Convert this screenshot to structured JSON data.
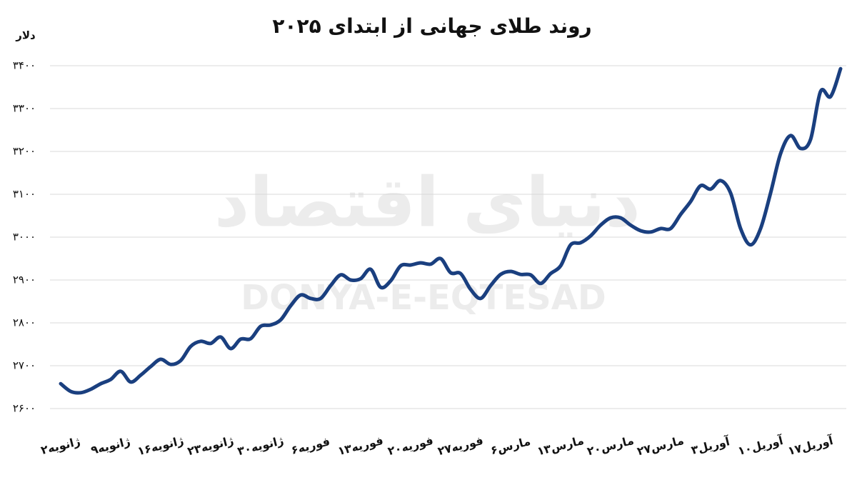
{
  "chart_data": {
    "type": "line",
    "title": "روند طلای جهانی از ابتدای ۲۰۲۵",
    "y_label": "دلار",
    "watermark": [
      "دنیای اقتصاد",
      "DONYA-E-EQTESAD"
    ],
    "categories": [
      "۲ژانویه",
      null,
      null,
      null,
      null,
      "۹ژانویه",
      null,
      null,
      null,
      null,
      "۱۶ژانویه",
      null,
      null,
      null,
      null,
      "۲۳ژانویه",
      null,
      null,
      null,
      null,
      "۳۰ژانویه",
      null,
      null,
      null,
      null,
      "۶فوریه",
      null,
      null,
      null,
      null,
      "۱۳فوریه",
      null,
      null,
      null,
      null,
      "۲۰فوریه",
      null,
      null,
      null,
      null,
      "۲۷فوریه",
      null,
      null,
      null,
      null,
      "۶مارس",
      null,
      null,
      null,
      null,
      "۱۳مارس",
      null,
      null,
      null,
      null,
      "۲۰مارس",
      null,
      null,
      null,
      null,
      "۲۷مارس",
      null,
      null,
      null,
      null,
      "۳آوریل",
      null,
      null,
      null,
      null,
      "۱۰آوریل",
      null,
      null,
      null,
      null,
      "۱۷آوریل",
      null,
      null,
      null
    ],
    "series": [
      {
        "color": "#1a3f7f",
        "values": [
          2658,
          2640,
          2637,
          2645,
          2658,
          2668,
          2687,
          2662,
          2678,
          2698,
          2715,
          2703,
          2712,
          2745,
          2757,
          2752,
          2767,
          2740,
          2762,
          2763,
          2792,
          2795,
          2807,
          2840,
          2865,
          2857,
          2857,
          2887,
          2912,
          2900,
          2903,
          2925,
          2883,
          2898,
          2933,
          2935,
          2940,
          2937,
          2950,
          2917,
          2915,
          2878,
          2857,
          2887,
          2913,
          2920,
          2913,
          2912,
          2892,
          2915,
          2933,
          2982,
          2987,
          3003,
          3028,
          3045,
          3045,
          3028,
          3015,
          3012,
          3020,
          3020,
          3053,
          3083,
          3120,
          3112,
          3132,
          3103,
          3020,
          2982,
          3020,
          3103,
          3195,
          3237,
          3207,
          3228,
          3340,
          3328,
          3393
        ]
      }
    ],
    "ylim": [
      2600,
      3400
    ],
    "yticks": [
      {
        "value": 2600,
        "label": "۲۶۰۰"
      },
      {
        "value": 2700,
        "label": "۲۷۰۰"
      },
      {
        "value": 2800,
        "label": "۲۸۰۰"
      },
      {
        "value": 2900,
        "label": "۲۹۰۰"
      },
      {
        "value": 3000,
        "label": "۳۰۰۰"
      },
      {
        "value": 3100,
        "label": "۳۱۰۰"
      },
      {
        "value": 3200,
        "label": "۳۲۰۰"
      },
      {
        "value": 3300,
        "label": "۳۳۰۰"
      },
      {
        "value": 3400,
        "label": "۳۴۰۰"
      }
    ],
    "grid": true
  }
}
